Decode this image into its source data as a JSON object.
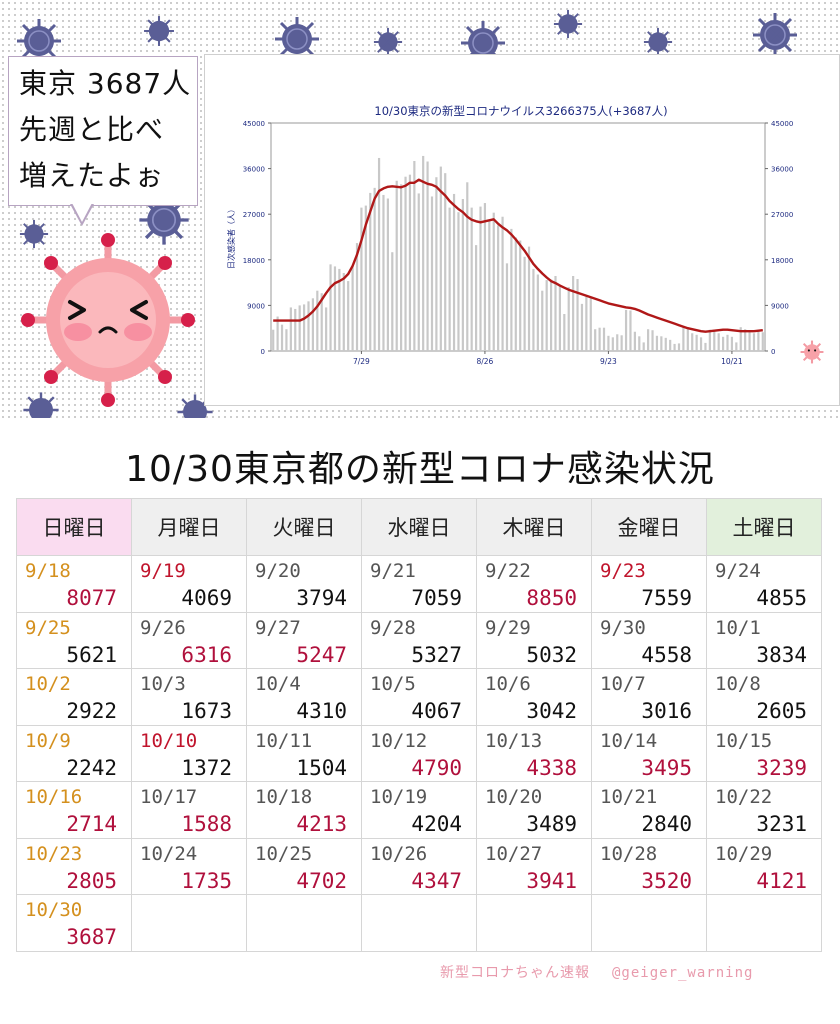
{
  "bubble": {
    "line1": "東京 3687人",
    "line2": "先週と比べ",
    "line3": "増えたよぉ"
  },
  "chart": {
    "title": "10/30東京の新型コロナウイルス3266375人(+3687人)",
    "ylabel": "日次感染者（人）"
  },
  "chart_data": {
    "type": "bar",
    "title": "10/30東京の新型コロナウイルス3266375人(+3687人)",
    "ylabel": "日次感染者（人）",
    "ylim": [
      0,
      45000
    ],
    "yticks": [
      "0",
      "9000",
      "18000",
      "27000",
      "36000",
      "45000"
    ],
    "xticks": [
      {
        "label": "7/29",
        "index": 20
      },
      {
        "label": "8/26",
        "index": 48
      },
      {
        "label": "9/23",
        "index": 76
      },
      {
        "label": "10/21",
        "index": 104
      }
    ],
    "series": [
      {
        "type": "bar",
        "values": [
          4200,
          6800,
          5200,
          4300,
          8600,
          8300,
          9000,
          9200,
          9800,
          10400,
          11900,
          11400,
          8600,
          17100,
          16700,
          16200,
          15400,
          13800,
          16700,
          21300,
          28300,
          28700,
          31200,
          32200,
          38100,
          30800,
          30100,
          19500,
          33600,
          32900,
          34400,
          34800,
          37500,
          31100,
          38500,
          37400,
          30500,
          34300,
          36400,
          35100,
          28300,
          31000,
          27400,
          30000,
          33300,
          28300,
          20900,
          28500,
          29200,
          25900,
          27300,
          24800,
          26500,
          17300,
          24100,
          22400,
          21800,
          18600,
          20600,
          16200,
          15100,
          11900,
          14000,
          14100,
          14800,
          12900,
          7300,
          12600,
          14800,
          14200,
          9300,
          10700,
          10500,
          4300,
          4600,
          4600,
          3000,
          2700,
          3300,
          3100,
          8100,
          8000,
          3800,
          2900,
          1700,
          4300,
          4100,
          3000,
          2900,
          2600,
          2200,
          1400,
          1500,
          4800,
          4300,
          3500,
          3200,
          2700,
          1600,
          4200,
          4200,
          3500,
          2800,
          3200,
          2800,
          1700,
          4700,
          4300,
          3900,
          3500,
          4100,
          3700
        ]
      },
      {
        "type": "line",
        "values": [
          6000,
          6000,
          6000,
          6000,
          6000,
          6000,
          6000,
          6400,
          7000,
          7800,
          8800,
          10100,
          11400,
          12600,
          13400,
          13800,
          14300,
          15200,
          16800,
          19000,
          21800,
          24900,
          27500,
          30100,
          31600,
          32100,
          32400,
          32500,
          32400,
          32300,
          32600,
          33200,
          33200,
          33800,
          33400,
          33000,
          32800,
          32400,
          31500,
          30700,
          29600,
          28800,
          28000,
          27400,
          26500,
          25900,
          25600,
          25400,
          25600,
          25800,
          26000,
          25100,
          24400,
          23800,
          23000,
          22000,
          20900,
          19800,
          18500,
          17200,
          16200,
          15300,
          14500,
          13800,
          13400,
          12900,
          12500,
          12100,
          11800,
          11500,
          11200,
          10900,
          10600,
          10300,
          10000,
          9700,
          9400,
          9200,
          9000,
          8800,
          8600,
          8500,
          8300,
          8000,
          7600,
          7200,
          6900,
          6600,
          6300,
          6000,
          5700,
          5400,
          5100,
          4800,
          4500,
          4300,
          4100,
          3900,
          3800,
          3900,
          4000,
          4100,
          4200,
          4200,
          4100,
          4000,
          3900,
          3900,
          3900,
          3900,
          4000,
          4100
        ]
      }
    ]
  },
  "table": {
    "title": "10/30東京都の新型コロナ感染状況",
    "days": [
      "日曜日",
      "月曜日",
      "火曜日",
      "水曜日",
      "木曜日",
      "金曜日",
      "土曜日"
    ],
    "rows": [
      [
        {
          "d": "9/18",
          "v": "8077",
          "dc": "gold",
          "vc": "red"
        },
        {
          "d": "9/19",
          "v": "4069",
          "dc": "red",
          "vc": ""
        },
        {
          "d": "9/20",
          "v": "3794",
          "dc": "",
          "vc": ""
        },
        {
          "d": "9/21",
          "v": "7059",
          "dc": "",
          "vc": ""
        },
        {
          "d": "9/22",
          "v": "8850",
          "dc": "",
          "vc": "red"
        },
        {
          "d": "9/23",
          "v": "7559",
          "dc": "red",
          "vc": ""
        },
        {
          "d": "9/24",
          "v": "4855",
          "dc": "",
          "vc": ""
        }
      ],
      [
        {
          "d": "9/25",
          "v": "5621",
          "dc": "gold",
          "vc": ""
        },
        {
          "d": "9/26",
          "v": "6316",
          "dc": "",
          "vc": "red"
        },
        {
          "d": "9/27",
          "v": "5247",
          "dc": "",
          "vc": "red"
        },
        {
          "d": "9/28",
          "v": "5327",
          "dc": "",
          "vc": ""
        },
        {
          "d": "9/29",
          "v": "5032",
          "dc": "",
          "vc": ""
        },
        {
          "d": "9/30",
          "v": "4558",
          "dc": "",
          "vc": ""
        },
        {
          "d": "10/1",
          "v": "3834",
          "dc": "",
          "vc": ""
        }
      ],
      [
        {
          "d": "10/2",
          "v": "2922",
          "dc": "gold",
          "vc": ""
        },
        {
          "d": "10/3",
          "v": "1673",
          "dc": "",
          "vc": ""
        },
        {
          "d": "10/4",
          "v": "4310",
          "dc": "",
          "vc": ""
        },
        {
          "d": "10/5",
          "v": "4067",
          "dc": "",
          "vc": ""
        },
        {
          "d": "10/6",
          "v": "3042",
          "dc": "",
          "vc": ""
        },
        {
          "d": "10/7",
          "v": "3016",
          "dc": "",
          "vc": ""
        },
        {
          "d": "10/8",
          "v": "2605",
          "dc": "",
          "vc": ""
        }
      ],
      [
        {
          "d": "10/9",
          "v": "2242",
          "dc": "gold",
          "vc": ""
        },
        {
          "d": "10/10",
          "v": "1372",
          "dc": "red",
          "vc": ""
        },
        {
          "d": "10/11",
          "v": "1504",
          "dc": "",
          "vc": ""
        },
        {
          "d": "10/12",
          "v": "4790",
          "dc": "",
          "vc": "red"
        },
        {
          "d": "10/13",
          "v": "4338",
          "dc": "",
          "vc": "red"
        },
        {
          "d": "10/14",
          "v": "3495",
          "dc": "",
          "vc": "red"
        },
        {
          "d": "10/15",
          "v": "3239",
          "dc": "",
          "vc": "red"
        }
      ],
      [
        {
          "d": "10/16",
          "v": "2714",
          "dc": "gold",
          "vc": "red"
        },
        {
          "d": "10/17",
          "v": "1588",
          "dc": "",
          "vc": "red"
        },
        {
          "d": "10/18",
          "v": "4213",
          "dc": "",
          "vc": "red"
        },
        {
          "d": "10/19",
          "v": "4204",
          "dc": "",
          "vc": ""
        },
        {
          "d": "10/20",
          "v": "3489",
          "dc": "",
          "vc": ""
        },
        {
          "d": "10/21",
          "v": "2840",
          "dc": "",
          "vc": ""
        },
        {
          "d": "10/22",
          "v": "3231",
          "dc": "",
          "vc": ""
        }
      ],
      [
        {
          "d": "10/23",
          "v": "2805",
          "dc": "gold",
          "vc": "red"
        },
        {
          "d": "10/24",
          "v": "1735",
          "dc": "",
          "vc": "red"
        },
        {
          "d": "10/25",
          "v": "4702",
          "dc": "",
          "vc": "red"
        },
        {
          "d": "10/26",
          "v": "4347",
          "dc": "",
          "vc": "red"
        },
        {
          "d": "10/27",
          "v": "3941",
          "dc": "",
          "vc": "red"
        },
        {
          "d": "10/28",
          "v": "3520",
          "dc": "",
          "vc": "red"
        },
        {
          "d": "10/29",
          "v": "4121",
          "dc": "",
          "vc": "red"
        }
      ],
      [
        {
          "d": "10/30",
          "v": "3687",
          "dc": "gold",
          "vc": "red"
        },
        {
          "d": "",
          "v": "",
          "dc": "",
          "vc": ""
        },
        {
          "d": "",
          "v": "",
          "dc": "",
          "vc": ""
        },
        {
          "d": "",
          "v": "",
          "dc": "",
          "vc": ""
        },
        {
          "d": "",
          "v": "",
          "dc": "",
          "vc": ""
        },
        {
          "d": "",
          "v": "",
          "dc": "",
          "vc": ""
        },
        {
          "d": "",
          "v": "",
          "dc": "",
          "vc": ""
        }
      ]
    ]
  },
  "footer": {
    "source": "新型コロナちゃん速報",
    "handle": "@geiger_warning"
  },
  "colors": {
    "line": "#b01818",
    "bar": "#c8c8c8",
    "axis_text": "#1d2a80",
    "virus": "#5a5e96",
    "mascot": "#f7a1a8"
  }
}
